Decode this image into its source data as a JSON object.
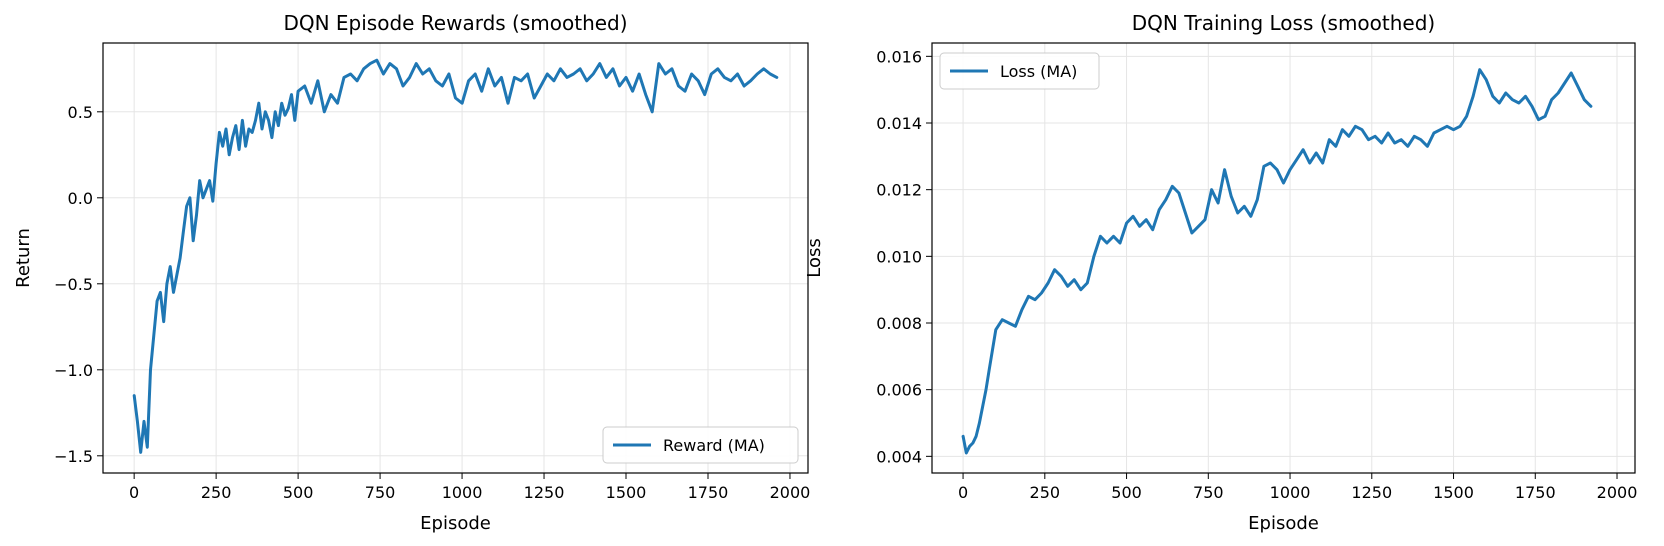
{
  "colors": {
    "series": "#1f77b4",
    "grid": "#e5e5e5",
    "axes": "#000000"
  },
  "chart_data": [
    {
      "type": "line",
      "title": "DQN Episode Rewards (smoothed)",
      "xlabel": "Episode",
      "ylabel": "Return",
      "xlim": [
        -95,
        2055
      ],
      "ylim": [
        -1.6,
        0.9
      ],
      "xticks": [
        0,
        250,
        500,
        750,
        1000,
        1250,
        1500,
        1750,
        2000
      ],
      "yticks": [
        -1.5,
        -1.0,
        -0.5,
        0.0,
        0.5
      ],
      "ytick_labels": [
        "−1.5",
        "−1.0",
        "−0.5",
        "0.0",
        "0.5"
      ],
      "grid": true,
      "legend_position": "lower right",
      "series": [
        {
          "name": "Reward (MA)",
          "x": [
            0,
            10,
            20,
            30,
            40,
            50,
            60,
            70,
            80,
            90,
            100,
            110,
            120,
            130,
            140,
            150,
            160,
            170,
            180,
            190,
            200,
            210,
            220,
            230,
            240,
            250,
            260,
            270,
            280,
            290,
            300,
            310,
            320,
            330,
            340,
            350,
            360,
            370,
            380,
            390,
            400,
            410,
            420,
            430,
            440,
            450,
            460,
            470,
            480,
            490,
            500,
            520,
            540,
            560,
            580,
            600,
            620,
            640,
            660,
            680,
            700,
            720,
            740,
            760,
            780,
            800,
            820,
            840,
            860,
            880,
            900,
            920,
            940,
            960,
            980,
            1000,
            1020,
            1040,
            1060,
            1080,
            1100,
            1120,
            1140,
            1160,
            1180,
            1200,
            1220,
            1240,
            1260,
            1280,
            1300,
            1320,
            1340,
            1360,
            1380,
            1400,
            1420,
            1440,
            1460,
            1480,
            1500,
            1520,
            1540,
            1560,
            1580,
            1600,
            1620,
            1640,
            1660,
            1680,
            1700,
            1720,
            1740,
            1760,
            1780,
            1800,
            1820,
            1840,
            1860,
            1880,
            1900,
            1920,
            1940,
            1960
          ],
          "y": [
            -1.15,
            -1.3,
            -1.48,
            -1.3,
            -1.45,
            -1.0,
            -0.8,
            -0.6,
            -0.55,
            -0.72,
            -0.5,
            -0.4,
            -0.55,
            -0.45,
            -0.35,
            -0.2,
            -0.05,
            0.0,
            -0.25,
            -0.1,
            0.1,
            0.0,
            0.05,
            0.1,
            -0.02,
            0.2,
            0.38,
            0.3,
            0.4,
            0.25,
            0.35,
            0.42,
            0.28,
            0.45,
            0.3,
            0.4,
            0.38,
            0.45,
            0.55,
            0.4,
            0.5,
            0.45,
            0.35,
            0.5,
            0.42,
            0.55,
            0.48,
            0.52,
            0.6,
            0.45,
            0.62,
            0.65,
            0.55,
            0.68,
            0.5,
            0.6,
            0.55,
            0.7,
            0.72,
            0.68,
            0.75,
            0.78,
            0.8,
            0.72,
            0.78,
            0.75,
            0.65,
            0.7,
            0.78,
            0.72,
            0.75,
            0.68,
            0.65,
            0.72,
            0.58,
            0.55,
            0.68,
            0.72,
            0.62,
            0.75,
            0.65,
            0.7,
            0.55,
            0.7,
            0.68,
            0.72,
            0.58,
            0.65,
            0.72,
            0.68,
            0.75,
            0.7,
            0.72,
            0.75,
            0.68,
            0.72,
            0.78,
            0.7,
            0.75,
            0.65,
            0.7,
            0.62,
            0.72,
            0.6,
            0.5,
            0.78,
            0.72,
            0.75,
            0.65,
            0.62,
            0.72,
            0.68,
            0.6,
            0.72,
            0.75,
            0.7,
            0.68,
            0.72,
            0.65,
            0.68,
            0.72,
            0.75,
            0.72,
            0.7
          ]
        }
      ]
    },
    {
      "type": "line",
      "title": "DQN Training Loss (smoothed)",
      "xlabel": "Episode",
      "ylabel": "Loss",
      "xlim": [
        -95,
        2055
      ],
      "ylim": [
        0.0035,
        0.0164
      ],
      "xticks": [
        0,
        250,
        500,
        750,
        1000,
        1250,
        1500,
        1750,
        2000
      ],
      "yticks": [
        0.004,
        0.006,
        0.008,
        0.01,
        0.012,
        0.014,
        0.016
      ],
      "ytick_labels": [
        "0.004",
        "0.006",
        "0.008",
        "0.010",
        "0.012",
        "0.014",
        "0.016"
      ],
      "grid": true,
      "legend_position": "upper left",
      "series": [
        {
          "name": "Loss (MA)",
          "x": [
            0,
            10,
            20,
            30,
            40,
            50,
            60,
            70,
            80,
            90,
            100,
            120,
            140,
            160,
            180,
            200,
            220,
            240,
            260,
            280,
            300,
            320,
            340,
            360,
            380,
            400,
            420,
            440,
            460,
            480,
            500,
            520,
            540,
            560,
            580,
            600,
            620,
            640,
            660,
            680,
            700,
            720,
            740,
            760,
            780,
            800,
            820,
            840,
            860,
            880,
            900,
            920,
            940,
            960,
            980,
            1000,
            1020,
            1040,
            1060,
            1080,
            1100,
            1120,
            1140,
            1160,
            1180,
            1200,
            1220,
            1240,
            1260,
            1280,
            1300,
            1320,
            1340,
            1360,
            1380,
            1400,
            1420,
            1440,
            1460,
            1480,
            1500,
            1520,
            1540,
            1560,
            1580,
            1600,
            1620,
            1640,
            1660,
            1680,
            1700,
            1720,
            1740,
            1760,
            1780,
            1800,
            1820,
            1840,
            1860,
            1880,
            1900,
            1920
          ],
          "y": [
            0.0046,
            0.0041,
            0.0043,
            0.0044,
            0.0046,
            0.005,
            0.0055,
            0.006,
            0.0066,
            0.0072,
            0.0078,
            0.0081,
            0.008,
            0.0079,
            0.0084,
            0.0088,
            0.0087,
            0.0089,
            0.0092,
            0.0096,
            0.0094,
            0.0091,
            0.0093,
            0.009,
            0.0092,
            0.01,
            0.0106,
            0.0104,
            0.0106,
            0.0104,
            0.011,
            0.0112,
            0.0109,
            0.0111,
            0.0108,
            0.0114,
            0.0117,
            0.0121,
            0.0119,
            0.0113,
            0.0107,
            0.0109,
            0.0111,
            0.012,
            0.0116,
            0.0126,
            0.0118,
            0.0113,
            0.0115,
            0.0112,
            0.0117,
            0.0127,
            0.0128,
            0.0126,
            0.0122,
            0.0126,
            0.0129,
            0.0132,
            0.0128,
            0.0131,
            0.0128,
            0.0135,
            0.0133,
            0.0138,
            0.0136,
            0.0139,
            0.0138,
            0.0135,
            0.0136,
            0.0134,
            0.0137,
            0.0134,
            0.0135,
            0.0133,
            0.0136,
            0.0135,
            0.0133,
            0.0137,
            0.0138,
            0.0139,
            0.0138,
            0.0139,
            0.0142,
            0.0148,
            0.0156,
            0.0153,
            0.0148,
            0.0146,
            0.0149,
            0.0147,
            0.0146,
            0.0148,
            0.0145,
            0.0141,
            0.0142,
            0.0147,
            0.0149,
            0.0152,
            0.0155,
            0.0151,
            0.0147,
            0.0145
          ]
        }
      ]
    }
  ]
}
